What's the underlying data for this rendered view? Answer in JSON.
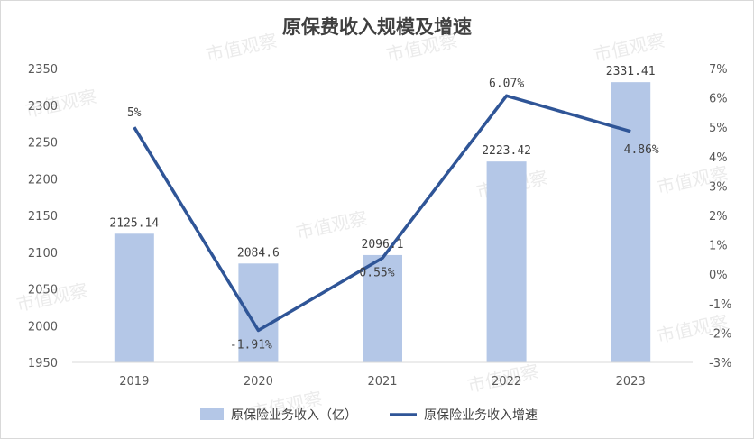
{
  "chart_data": {
    "type": "bar",
    "title": "原保费收入规模及增速",
    "categories": [
      "2019",
      "2020",
      "2021",
      "2022",
      "2023"
    ],
    "series": [
      {
        "name": "原保险业务收入（亿）",
        "type": "bar",
        "axis": "left",
        "values": [
          2125.14,
          2084.6,
          2096.1,
          2223.42,
          2331.41
        ],
        "labels": [
          "2125.14",
          "2084.6",
          "2096.1",
          "2223.42",
          "2331.41"
        ]
      },
      {
        "name": "原保险业务收入增速",
        "type": "line",
        "axis": "right",
        "values": [
          5,
          -1.91,
          0.55,
          6.07,
          4.86
        ],
        "labels": [
          "5%",
          "-1.91%",
          "0.55%",
          "6.07%",
          "4.86%"
        ]
      }
    ],
    "y_left": {
      "min": 1950,
      "max": 2350,
      "ticks": [
        "1950",
        "2000",
        "2050",
        "2100",
        "2150",
        "2200",
        "2250",
        "2300",
        "2350"
      ]
    },
    "y_right": {
      "min": -3,
      "max": 7,
      "ticks": [
        "-3%",
        "-2%",
        "-1%",
        "0%",
        "1%",
        "2%",
        "3%",
        "4%",
        "5%",
        "6%",
        "7%"
      ]
    },
    "grid": false,
    "legend": "bottom",
    "colors": {
      "bar": "#b4c7e7",
      "line": "#2f5597"
    }
  },
  "watermark": {
    "text": "市值观察"
  }
}
